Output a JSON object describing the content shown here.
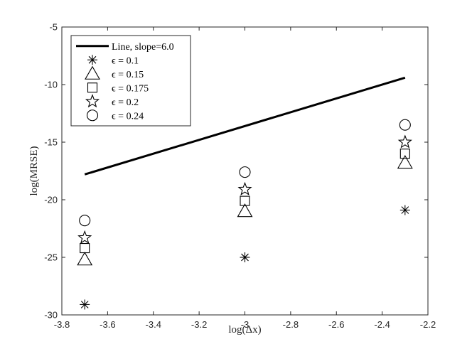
{
  "chart_data": {
    "type": "scatter",
    "xlabel": "log(Δx)",
    "ylabel": "log(MRSE)",
    "xlim": [
      -3.8,
      -2.2
    ],
    "ylim": [
      -30,
      -5
    ],
    "xticks": [
      "-3.8",
      "-3.6",
      "-3.4",
      "-3.2",
      "-3",
      "-2.8",
      "-2.6",
      "-2.4",
      "-2.2"
    ],
    "yticks": [
      "-5",
      "-10",
      "-15",
      "-20",
      "-25",
      "-30"
    ],
    "grid": false,
    "legend_position": "top-left",
    "x": [
      -3.7,
      -3.0,
      -2.3
    ],
    "reference_line": {
      "name": "Line, slope=6.0",
      "x": [
        -3.7,
        -2.3
      ],
      "y": [
        -17.8,
        -9.4
      ]
    },
    "series": [
      {
        "name": "ϵ = 0.1",
        "marker": "asterisk",
        "y": [
          -29.1,
          -25.0,
          -20.9
        ]
      },
      {
        "name": "ϵ = 0.15",
        "marker": "triangle",
        "y": [
          -25.2,
          -21.0,
          -16.8
        ]
      },
      {
        "name": "ϵ = 0.175",
        "marker": "square",
        "y": [
          -24.2,
          -20.1,
          -16.0
        ]
      },
      {
        "name": "ϵ = 0.2",
        "marker": "star",
        "y": [
          -23.3,
          -19.1,
          -15.0
        ]
      },
      {
        "name": "ϵ = 0.24",
        "marker": "circle",
        "y": [
          -21.8,
          -17.6,
          -13.5
        ]
      }
    ]
  }
}
